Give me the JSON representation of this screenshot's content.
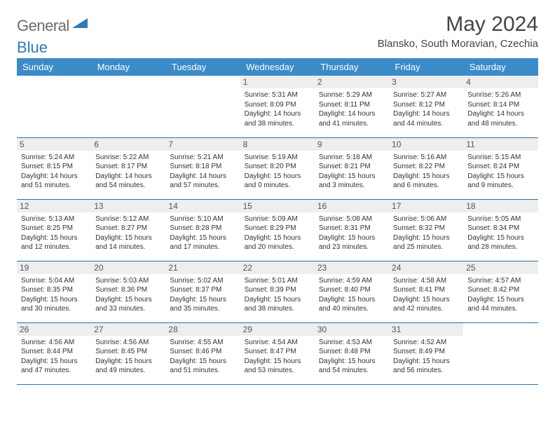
{
  "logo": {
    "part1": "General",
    "part2": "Blue"
  },
  "title": "May 2024",
  "location": "Blansko, South Moravian, Czechia",
  "colors": {
    "header_bg": "#3b8bc8",
    "header_text": "#ffffff",
    "day_num_bg": "#eeeeee",
    "cell_border": "#2f6fa6",
    "logo_gray": "#6b6b6b",
    "logo_blue": "#2f7ab8"
  },
  "weekdays": [
    "Sunday",
    "Monday",
    "Tuesday",
    "Wednesday",
    "Thursday",
    "Friday",
    "Saturday"
  ],
  "weeks": [
    [
      null,
      null,
      null,
      {
        "d": "1",
        "sunrise": "5:31 AM",
        "sunset": "8:09 PM",
        "dl": "14 hours and 38 minutes."
      },
      {
        "d": "2",
        "sunrise": "5:29 AM",
        "sunset": "8:11 PM",
        "dl": "14 hours and 41 minutes."
      },
      {
        "d": "3",
        "sunrise": "5:27 AM",
        "sunset": "8:12 PM",
        "dl": "14 hours and 44 minutes."
      },
      {
        "d": "4",
        "sunrise": "5:26 AM",
        "sunset": "8:14 PM",
        "dl": "14 hours and 48 minutes."
      }
    ],
    [
      {
        "d": "5",
        "sunrise": "5:24 AM",
        "sunset": "8:15 PM",
        "dl": "14 hours and 51 minutes."
      },
      {
        "d": "6",
        "sunrise": "5:22 AM",
        "sunset": "8:17 PM",
        "dl": "14 hours and 54 minutes."
      },
      {
        "d": "7",
        "sunrise": "5:21 AM",
        "sunset": "8:18 PM",
        "dl": "14 hours and 57 minutes."
      },
      {
        "d": "8",
        "sunrise": "5:19 AM",
        "sunset": "8:20 PM",
        "dl": "15 hours and 0 minutes."
      },
      {
        "d": "9",
        "sunrise": "5:18 AM",
        "sunset": "8:21 PM",
        "dl": "15 hours and 3 minutes."
      },
      {
        "d": "10",
        "sunrise": "5:16 AM",
        "sunset": "8:22 PM",
        "dl": "15 hours and 6 minutes."
      },
      {
        "d": "11",
        "sunrise": "5:15 AM",
        "sunset": "8:24 PM",
        "dl": "15 hours and 9 minutes."
      }
    ],
    [
      {
        "d": "12",
        "sunrise": "5:13 AM",
        "sunset": "8:25 PM",
        "dl": "15 hours and 12 minutes."
      },
      {
        "d": "13",
        "sunrise": "5:12 AM",
        "sunset": "8:27 PM",
        "dl": "15 hours and 14 minutes."
      },
      {
        "d": "14",
        "sunrise": "5:10 AM",
        "sunset": "8:28 PM",
        "dl": "15 hours and 17 minutes."
      },
      {
        "d": "15",
        "sunrise": "5:09 AM",
        "sunset": "8:29 PM",
        "dl": "15 hours and 20 minutes."
      },
      {
        "d": "16",
        "sunrise": "5:08 AM",
        "sunset": "8:31 PM",
        "dl": "15 hours and 23 minutes."
      },
      {
        "d": "17",
        "sunrise": "5:06 AM",
        "sunset": "8:32 PM",
        "dl": "15 hours and 25 minutes."
      },
      {
        "d": "18",
        "sunrise": "5:05 AM",
        "sunset": "8:34 PM",
        "dl": "15 hours and 28 minutes."
      }
    ],
    [
      {
        "d": "19",
        "sunrise": "5:04 AM",
        "sunset": "8:35 PM",
        "dl": "15 hours and 30 minutes."
      },
      {
        "d": "20",
        "sunrise": "5:03 AM",
        "sunset": "8:36 PM",
        "dl": "15 hours and 33 minutes."
      },
      {
        "d": "21",
        "sunrise": "5:02 AM",
        "sunset": "8:37 PM",
        "dl": "15 hours and 35 minutes."
      },
      {
        "d": "22",
        "sunrise": "5:01 AM",
        "sunset": "8:39 PM",
        "dl": "15 hours and 38 minutes."
      },
      {
        "d": "23",
        "sunrise": "4:59 AM",
        "sunset": "8:40 PM",
        "dl": "15 hours and 40 minutes."
      },
      {
        "d": "24",
        "sunrise": "4:58 AM",
        "sunset": "8:41 PM",
        "dl": "15 hours and 42 minutes."
      },
      {
        "d": "25",
        "sunrise": "4:57 AM",
        "sunset": "8:42 PM",
        "dl": "15 hours and 44 minutes."
      }
    ],
    [
      {
        "d": "26",
        "sunrise": "4:56 AM",
        "sunset": "8:44 PM",
        "dl": "15 hours and 47 minutes."
      },
      {
        "d": "27",
        "sunrise": "4:56 AM",
        "sunset": "8:45 PM",
        "dl": "15 hours and 49 minutes."
      },
      {
        "d": "28",
        "sunrise": "4:55 AM",
        "sunset": "8:46 PM",
        "dl": "15 hours and 51 minutes."
      },
      {
        "d": "29",
        "sunrise": "4:54 AM",
        "sunset": "8:47 PM",
        "dl": "15 hours and 53 minutes."
      },
      {
        "d": "30",
        "sunrise": "4:53 AM",
        "sunset": "8:48 PM",
        "dl": "15 hours and 54 minutes."
      },
      {
        "d": "31",
        "sunrise": "4:52 AM",
        "sunset": "8:49 PM",
        "dl": "15 hours and 56 minutes."
      },
      null
    ]
  ],
  "labels": {
    "sunrise": "Sunrise:",
    "sunset": "Sunset:",
    "daylight": "Daylight:"
  }
}
